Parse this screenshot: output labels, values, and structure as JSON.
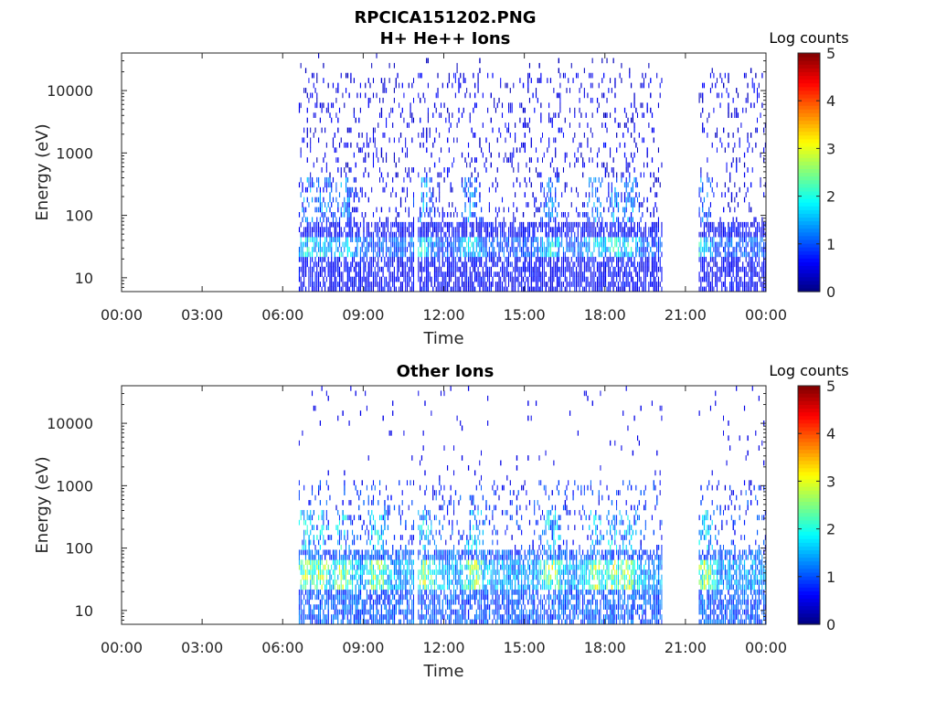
{
  "figure": {
    "title_line1": "RPCICA151202.PNG"
  },
  "colors": {
    "colormap": "jet",
    "background": "#ffffff",
    "axes": "#262626"
  },
  "chart_data": [
    {
      "type": "heatmap",
      "title": "H+ He++ Ions",
      "xlabel": "Time",
      "ylabel": "Energy (eV)",
      "yscale": "log",
      "ylim": [
        6,
        40000
      ],
      "xlim": [
        "00:00",
        "24:00"
      ],
      "x_ticks": [
        "00:00",
        "03:00",
        "06:00",
        "09:00",
        "12:00",
        "15:00",
        "18:00",
        "21:00",
        "00:00"
      ],
      "y_ticks": [
        {
          "value": 10,
          "label": "10"
        },
        {
          "value": 100,
          "label": "100"
        },
        {
          "value": 1000,
          "label": "1000"
        },
        {
          "value": 10000,
          "label": "10000"
        }
      ],
      "colorbar": {
        "label": "Log counts",
        "min": 0,
        "max": 5,
        "ticks": [
          "0",
          "1",
          "2",
          "3",
          "4",
          "5"
        ]
      },
      "data_intervals_hours": [
        [
          6.6,
          20.1
        ],
        [
          21.5,
          24.0
        ]
      ],
      "gap_hours": [
        10.95
      ],
      "background_level": 0.6,
      "background_energy_max_ev": 20000,
      "band_energy_ev": [
        22,
        45
      ],
      "band_peak_level": 2.1,
      "hotspots_hours": [
        6.9,
        7.5,
        8.3,
        11.2,
        13.0,
        16.0,
        17.6,
        18.3,
        18.9,
        21.6
      ]
    },
    {
      "type": "heatmap",
      "title": "Other Ions",
      "xlabel": "Time",
      "ylabel": "Energy (eV)",
      "yscale": "log",
      "ylim": [
        6,
        40000
      ],
      "xlim": [
        "00:00",
        "24:00"
      ],
      "x_ticks": [
        "00:00",
        "03:00",
        "06:00",
        "09:00",
        "12:00",
        "15:00",
        "18:00",
        "21:00",
        "00:00"
      ],
      "y_ticks": [
        {
          "value": 10,
          "label": "10"
        },
        {
          "value": 100,
          "label": "100"
        },
        {
          "value": 1000,
          "label": "1000"
        },
        {
          "value": 10000,
          "label": "10000"
        }
      ],
      "colorbar": {
        "label": "Log counts",
        "min": 0,
        "max": 5,
        "ticks": [
          "0",
          "1",
          "2",
          "3",
          "4",
          "5"
        ]
      },
      "data_intervals_hours": [
        [
          6.6,
          20.1
        ],
        [
          21.5,
          24.0
        ]
      ],
      "gap_hours": [
        10.95
      ],
      "background_level": 1.0,
      "background_energy_max_ev": 1200,
      "band_energy_ev": [
        22,
        60
      ],
      "band_peak_level": 2.9,
      "hotspots_hours": [
        6.8,
        7.4,
        8.2,
        9.5,
        11.3,
        13.1,
        16.0,
        17.7,
        18.3,
        18.8,
        21.7
      ]
    }
  ]
}
